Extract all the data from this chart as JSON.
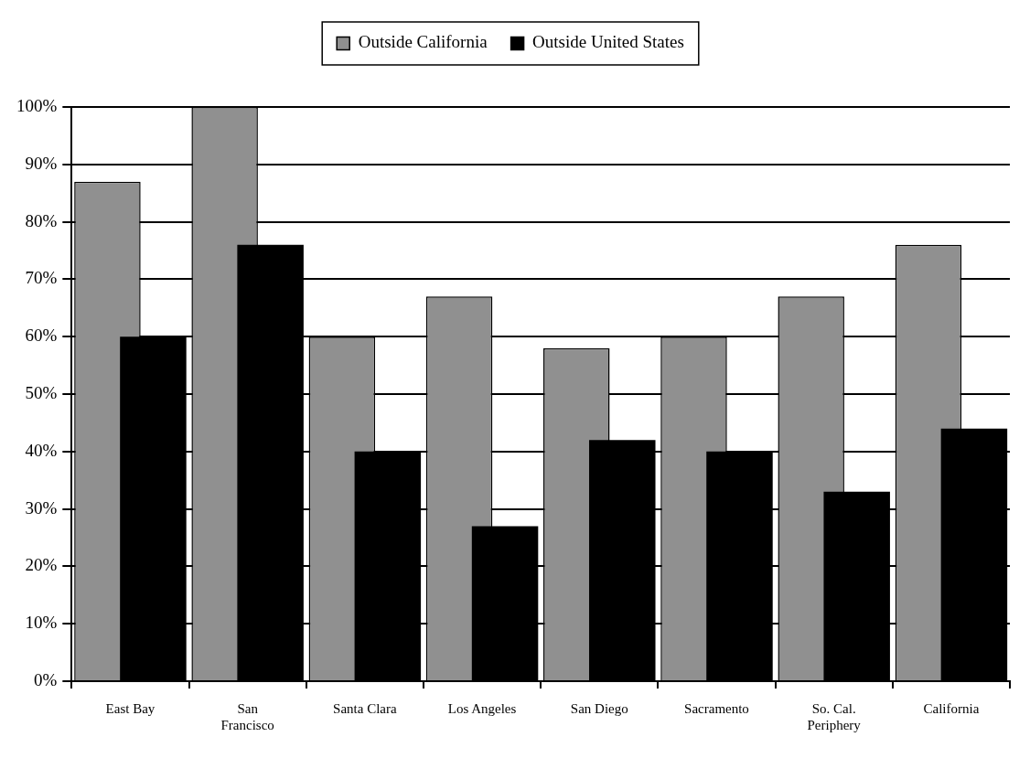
{
  "chart_data": {
    "type": "bar",
    "categories": [
      "East Bay",
      "San Francisco",
      "Santa Clara",
      "Los Angeles",
      "San Diego",
      "Sacramento",
      "So. Cal. Periphery",
      "California"
    ],
    "series": [
      {
        "name": "Outside California",
        "color": "#909090",
        "values": [
          87,
          100,
          60,
          67,
          58,
          60,
          67,
          76
        ]
      },
      {
        "name": "Outside United States",
        "color": "#000000",
        "values": [
          60,
          76,
          40,
          27,
          42,
          40,
          33,
          44
        ]
      }
    ],
    "ylim": [
      0,
      100
    ],
    "yticks": [
      {
        "value": 0,
        "label": "0%"
      },
      {
        "value": 10,
        "label": "10%"
      },
      {
        "value": 20,
        "label": "20%"
      },
      {
        "value": 30,
        "label": "30%"
      },
      {
        "value": 40,
        "label": "40%"
      },
      {
        "value": 50,
        "label": "50%"
      },
      {
        "value": 60,
        "label": "60%"
      },
      {
        "value": 70,
        "label": "70%"
      },
      {
        "value": 80,
        "label": "80%"
      },
      {
        "value": 90,
        "label": "90%"
      },
      {
        "value": 100,
        "label": "100%"
      }
    ],
    "grid": "y",
    "legend": "top"
  }
}
